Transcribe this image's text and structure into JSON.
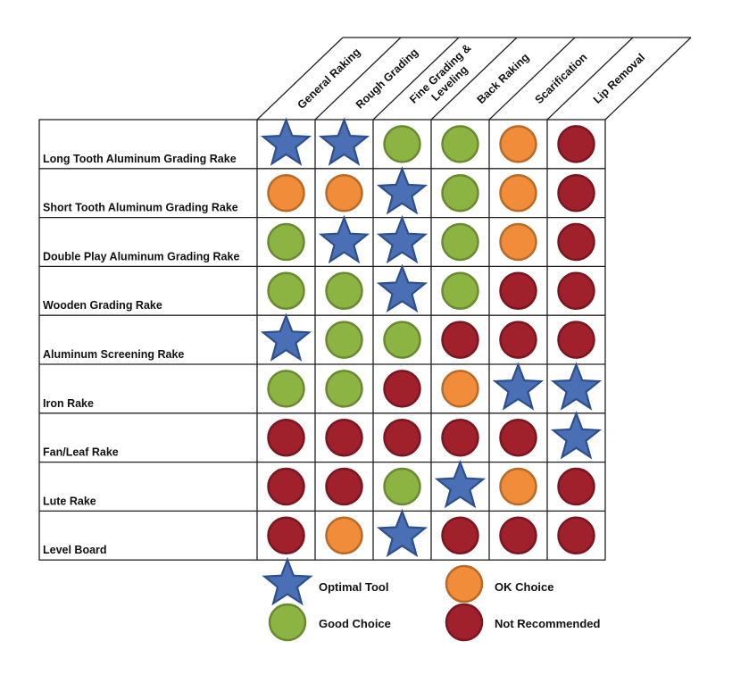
{
  "chart_data": {
    "type": "table",
    "title": "",
    "columns": [
      "General Raking",
      "Rough Grading",
      "Fine Grading & Leveling",
      "Back Raking",
      "Scarification",
      "Lip Removal"
    ],
    "column_label_lines": [
      [
        "General Raking"
      ],
      [
        "Rough Grading"
      ],
      [
        "Fine Grading &",
        "Leveling"
      ],
      [
        "Back Raking"
      ],
      [
        "Scarification"
      ],
      [
        "Lip Removal"
      ]
    ],
    "rows": [
      "Long Tooth Aluminum Grading Rake",
      "Short Tooth Aluminum Grading Rake",
      "Double Play Aluminum Grading Rake",
      "Wooden Grading Rake",
      "Aluminum Screening Rake",
      "Iron Rake",
      "Fan/Leaf Rake",
      "Lute Rake",
      "Level Board"
    ],
    "ratings": [
      [
        "optimal",
        "optimal",
        "good",
        "good",
        "ok",
        "not"
      ],
      [
        "ok",
        "ok",
        "optimal",
        "good",
        "ok",
        "not"
      ],
      [
        "good",
        "optimal",
        "optimal",
        "good",
        "ok",
        "not"
      ],
      [
        "good",
        "good",
        "optimal",
        "good",
        "not",
        "not"
      ],
      [
        "optimal",
        "good",
        "good",
        "not",
        "not",
        "not"
      ],
      [
        "good",
        "good",
        "not",
        "ok",
        "optimal",
        "optimal"
      ],
      [
        "not",
        "not",
        "not",
        "not",
        "not",
        "optimal"
      ],
      [
        "not",
        "not",
        "good",
        "optimal",
        "ok",
        "not"
      ],
      [
        "not",
        "ok",
        "optimal",
        "not",
        "not",
        "not"
      ]
    ],
    "legend": [
      {
        "key": "optimal",
        "label": "Optimal Tool",
        "shape": "star",
        "color": "#4A6FB5",
        "stroke": "#2D4F8E"
      },
      {
        "key": "ok",
        "label": "OK Choice",
        "shape": "circle",
        "color": "#F08C3A",
        "stroke": "#B86A27"
      },
      {
        "key": "good",
        "label": "Good Choice",
        "shape": "circle",
        "color": "#8BB443",
        "stroke": "#6A8A31"
      },
      {
        "key": "not",
        "label": "Not Recommended",
        "shape": "circle",
        "color": "#A0202C",
        "stroke": "#7A1620"
      }
    ],
    "legend_placement": "bottom",
    "grid": true
  }
}
